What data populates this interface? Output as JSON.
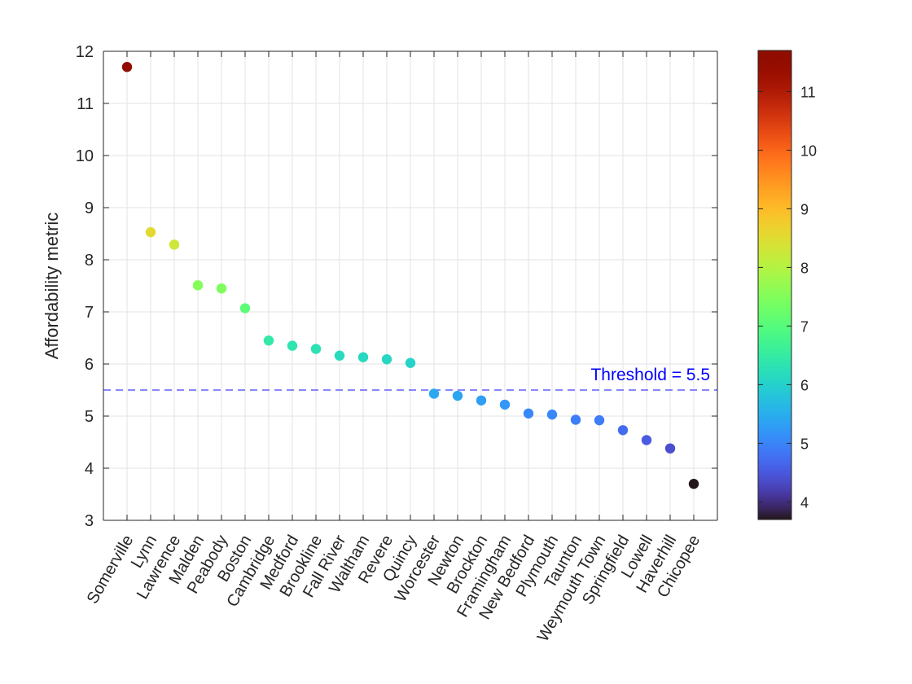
{
  "chart_data": {
    "type": "scatter",
    "title": "",
    "xlabel": "",
    "ylabel": "Affordability metric",
    "ylim": [
      3,
      12
    ],
    "yticks": [
      3,
      4,
      5,
      6,
      7,
      8,
      9,
      10,
      11,
      12
    ],
    "grid": true,
    "categories": [
      "Somerville",
      "Lynn",
      "Lawrence",
      "Malden",
      "Peabody",
      "Boston",
      "Cambridge",
      "Medford",
      "Brookline",
      "Fall River",
      "Waltham",
      "Revere",
      "Quincy",
      "Worcester",
      "Newton",
      "Brockton",
      "Framingham",
      "New Bedford",
      "Plymouth",
      "Taunton",
      "Weymouth Town",
      "Springfield",
      "Lowell",
      "Haverhill",
      "Chicopee"
    ],
    "values": [
      11.7,
      8.53,
      8.29,
      7.51,
      7.45,
      7.07,
      6.45,
      6.35,
      6.29,
      6.16,
      6.13,
      6.09,
      6.02,
      5.43,
      5.39,
      5.3,
      5.22,
      5.05,
      5.03,
      4.93,
      4.92,
      4.73,
      4.54,
      4.38,
      3.7
    ],
    "threshold": {
      "value": 5.5,
      "label": "Threshold = 5.5",
      "color": "#0000ff"
    },
    "colorbar": {
      "colormap": "turbo",
      "range": [
        3.7,
        11.7
      ],
      "ticks": [
        4,
        5,
        6,
        7,
        8,
        9,
        10,
        11
      ]
    }
  }
}
